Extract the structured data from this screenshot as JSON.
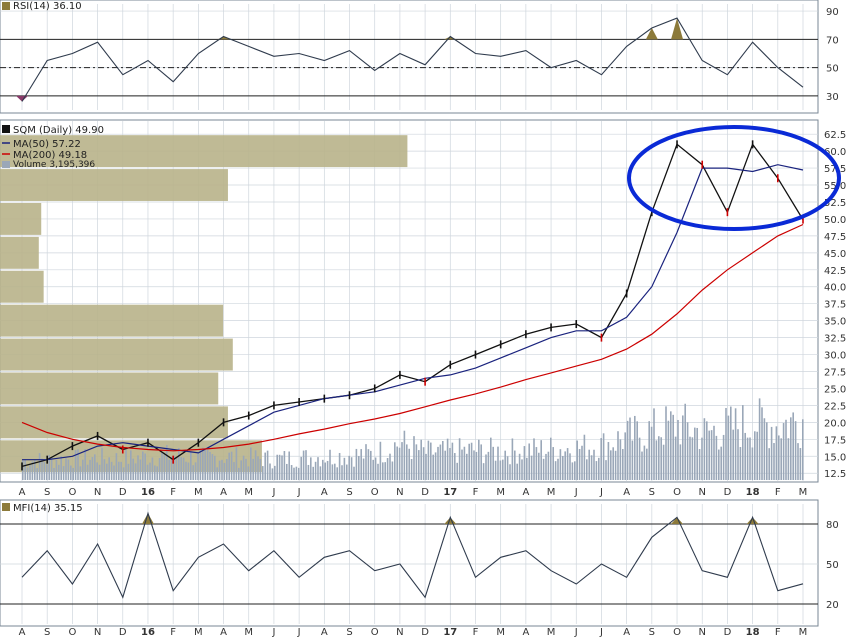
{
  "colors": {
    "price_up": "#111111",
    "price_down": "#cc0000",
    "ma50": "#1a237e",
    "ma200": "#cc0000",
    "volume": "#9aa7b8",
    "vbp": "#b8b38a",
    "indicator_line": "#2f3b4d",
    "overbought_fill": "#8c7a3a",
    "oversold_fill": "#8a3a6a",
    "highlight_ellipse": "#0a2ad6",
    "grid": "#cfd6dd"
  },
  "x_axis": {
    "labels": [
      "A",
      "S",
      "O",
      "N",
      "D",
      "16",
      "F",
      "M",
      "A",
      "M",
      "J",
      "J",
      "A",
      "S",
      "O",
      "N",
      "D",
      "17",
      "F",
      "M",
      "A",
      "M",
      "J",
      "J",
      "A",
      "S",
      "O",
      "N",
      "D",
      "18",
      "F",
      "M"
    ]
  },
  "rsi_panel": {
    "title": "RSI(14) 36.10",
    "ticks": [
      "90",
      "70",
      "50",
      "30"
    ]
  },
  "price_panel": {
    "title": "SQM (Daily) 49.90",
    "legend": [
      {
        "label": "MA(50) 57.22",
        "color": "#1a237e"
      },
      {
        "label": "MA(200) 49.18",
        "color": "#cc0000"
      },
      {
        "label": "Volume 3,195,396",
        "color": "#9aa7b8"
      }
    ],
    "ticks": [
      "62.5",
      "60.0",
      "57.5",
      "55.0",
      "52.5",
      "50.0",
      "47.5",
      "45.0",
      "42.5",
      "40.0",
      "37.5",
      "35.0",
      "32.5",
      "30.0",
      "27.5",
      "25.0",
      "22.5",
      "20.0",
      "17.5",
      "15.0",
      "12.5"
    ]
  },
  "mfi_panel": {
    "title": "MFI(14) 35.15",
    "ticks": [
      "80",
      "50",
      "20"
    ]
  },
  "chart_data": [
    {
      "type": "line",
      "panel": "price",
      "title": "SQM (Daily) 49.90",
      "x": [
        "A",
        "S",
        "O",
        "N",
        "D",
        "16",
        "F",
        "M",
        "A",
        "M",
        "J",
        "J",
        "A",
        "S",
        "O",
        "N",
        "D",
        "17",
        "F",
        "M",
        "A",
        "M",
        "J",
        "J",
        "A",
        "S",
        "O",
        "N",
        "D",
        "18",
        "F",
        "M"
      ],
      "ylim": [
        11.5,
        64
      ],
      "grid": true,
      "legend_position": "top-left",
      "series": [
        {
          "name": "SQM (Daily) 49.90",
          "values": [
            13.5,
            14.5,
            16.5,
            18.0,
            16.0,
            17.0,
            14.5,
            17.0,
            20.0,
            21.0,
            22.5,
            23.0,
            23.5,
            24.0,
            25.0,
            27.0,
            26.0,
            28.5,
            30.0,
            31.5,
            33.0,
            34.0,
            34.5,
            32.5,
            39.0,
            51.0,
            61.0,
            58.0,
            51.0,
            61.0,
            56.0,
            49.9
          ]
        },
        {
          "name": "MA(50) 57.22",
          "values": [
            14.5,
            14.5,
            15.0,
            16.5,
            17.0,
            16.5,
            16.0,
            15.5,
            17.5,
            19.5,
            21.5,
            22.5,
            23.5,
            24.0,
            24.5,
            25.5,
            26.5,
            27.0,
            28.0,
            29.5,
            31.0,
            32.5,
            33.5,
            33.5,
            35.5,
            40.0,
            48.0,
            57.5,
            57.5,
            57.0,
            58.0,
            57.22
          ]
        },
        {
          "name": "MA(200) 49.18",
          "values": [
            20.0,
            18.5,
            17.5,
            16.8,
            16.3,
            16.0,
            15.8,
            16.0,
            16.3,
            16.8,
            17.5,
            18.3,
            19.0,
            19.8,
            20.5,
            21.3,
            22.3,
            23.3,
            24.2,
            25.2,
            26.3,
            27.3,
            28.3,
            29.3,
            30.8,
            33.0,
            36.0,
            39.5,
            42.5,
            45.0,
            47.5,
            49.18
          ]
        }
      ],
      "volume": [
        1.6,
        1.6,
        1.7,
        1.8,
        1.7,
        1.9,
        2.0,
        1.8,
        1.9,
        1.8,
        1.7,
        1.8,
        1.9,
        2.0,
        2.1,
        3.0,
        2.2,
        2.3,
        2.4,
        2.3,
        2.4,
        2.5,
        2.6,
        2.8,
        3.5,
        4.0,
        4.5,
        3.8,
        4.2,
        4.6,
        4.4,
        5.0
      ],
      "volume_by_price": [
        {
          "from": 12.5,
          "to": 17.5,
          "value": 0.54
        },
        {
          "from": 17.5,
          "to": 22.5,
          "value": 0.47
        },
        {
          "from": 22.5,
          "to": 27.5,
          "value": 0.45
        },
        {
          "from": 27.5,
          "to": 32.5,
          "value": 0.48
        },
        {
          "from": 32.5,
          "to": 37.5,
          "value": 0.46
        },
        {
          "from": 37.5,
          "to": 42.5,
          "value": 0.09
        },
        {
          "from": 42.5,
          "to": 47.5,
          "value": 0.08
        },
        {
          "from": 47.5,
          "to": 52.5,
          "value": 0.085
        },
        {
          "from": 52.5,
          "to": 57.5,
          "value": 0.47
        },
        {
          "from": 57.5,
          "to": 62.5,
          "value": 0.84
        }
      ]
    },
    {
      "type": "line",
      "panel": "rsi",
      "title": "RSI(14) 36.10",
      "ylim": [
        20,
        95
      ],
      "reference_lines": [
        70,
        50,
        30
      ],
      "series": [
        {
          "name": "RSI(14) 36.10",
          "values": [
            26,
            55,
            60,
            68,
            45,
            55,
            40,
            60,
            72,
            65,
            58,
            60,
            55,
            62,
            48,
            60,
            52,
            72,
            60,
            58,
            62,
            50,
            55,
            45,
            65,
            78,
            85,
            55,
            45,
            68,
            50,
            36.1
          ]
        }
      ]
    },
    {
      "type": "line",
      "panel": "mfi",
      "title": "MFI(14) 35.15",
      "ylim": [
        5,
        95
      ],
      "reference_lines": [
        80,
        20
      ],
      "series": [
        {
          "name": "MFI(14) 35.15",
          "values": [
            40,
            60,
            35,
            65,
            25,
            88,
            30,
            55,
            65,
            45,
            60,
            40,
            55,
            60,
            45,
            50,
            25,
            85,
            40,
            55,
            60,
            45,
            35,
            50,
            40,
            70,
            85,
            45,
            40,
            85,
            30,
            35.15
          ]
        }
      ]
    }
  ]
}
